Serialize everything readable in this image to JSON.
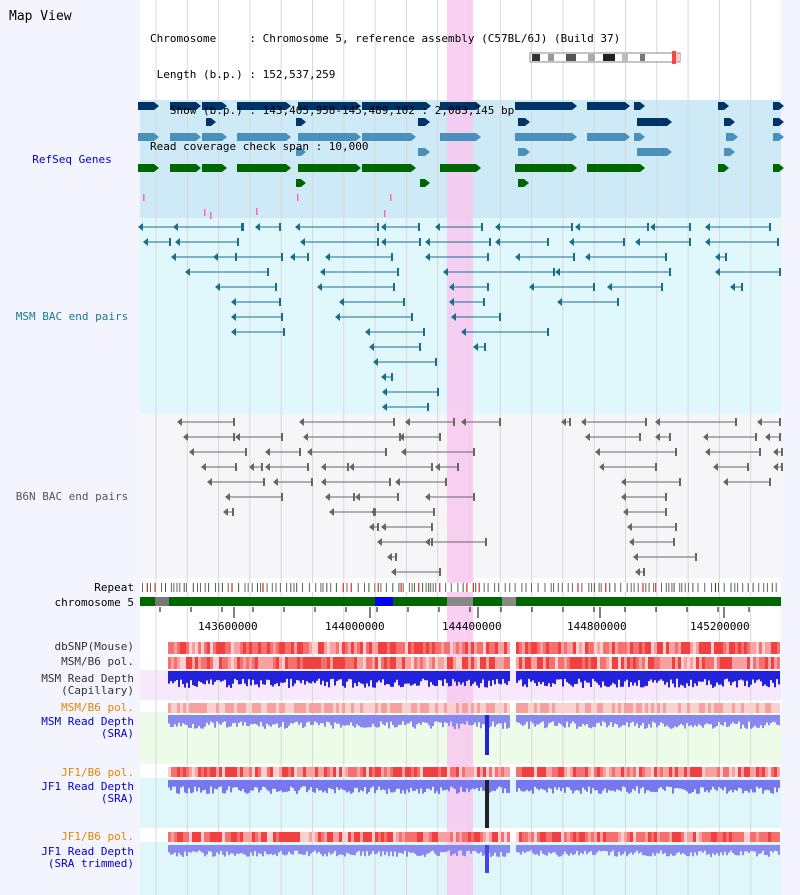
{
  "title": "Map View",
  "header": {
    "lines": [
      "Chromosome     : Chromosome 5, reference assembly (C57BL/6J) (Build 37)",
      " Length (b.p.) : 152,537,259",
      "   Show (b.p.) : 143,405,958-145,489,102 : 2,083,145 bp",
      "Read coverage check span : 10,000"
    ]
  },
  "tracks": {
    "refseq": "RefSeq Genes",
    "msm_bac": "MSM BAC end pairs",
    "b6n_bac": "B6N BAC end pairs",
    "repeat": "Repeat",
    "chromosome": "chromosome 5",
    "dbsnp": "dbSNP(Mouse)",
    "msm_b6_pol": "MSM/B6 pol.",
    "msm_read_depth_cap_1": "MSM Read Depth",
    "msm_read_depth_cap_2": "(Capillary)",
    "msm_b6_pol_2": "MSM/B6 pol.",
    "msm_read_depth_sra_1": "MSM Read Depth",
    "msm_read_depth_sra_2": "(SRA)",
    "jf1_b6_pol": "JF1/B6 pol.",
    "jf1_read_depth_sra_1": "JF1 Read Depth",
    "jf1_read_depth_sra_2": "(SRA)",
    "jf1_b6_pol_2": "JF1/B6 pol.",
    "jf1_read_depth_trim_1": "JF1 Read Depth",
    "jf1_read_depth_trim_2": "(SRA trimmed)"
  },
  "axis": {
    "ticks": [
      "143600000",
      "144000000",
      "144400000",
      "144800000",
      "145200000"
    ]
  },
  "colors": {
    "refseq_bg": "#cfeaf7",
    "msm_bg": "#e0f8fb",
    "b6n_bg": "#f4f4f8",
    "highlight": "#f8c8f0",
    "gene_dark": "#003366",
    "gene_mid": "#4a90b8",
    "gene_green": "#006600",
    "msm_line": "#1a6e8a",
    "b6n_line": "#666666",
    "label_blue": "#0000cc",
    "label_orange": "#e08800",
    "label_teal": "#1a7a8a",
    "label_gray": "#555555"
  }
}
